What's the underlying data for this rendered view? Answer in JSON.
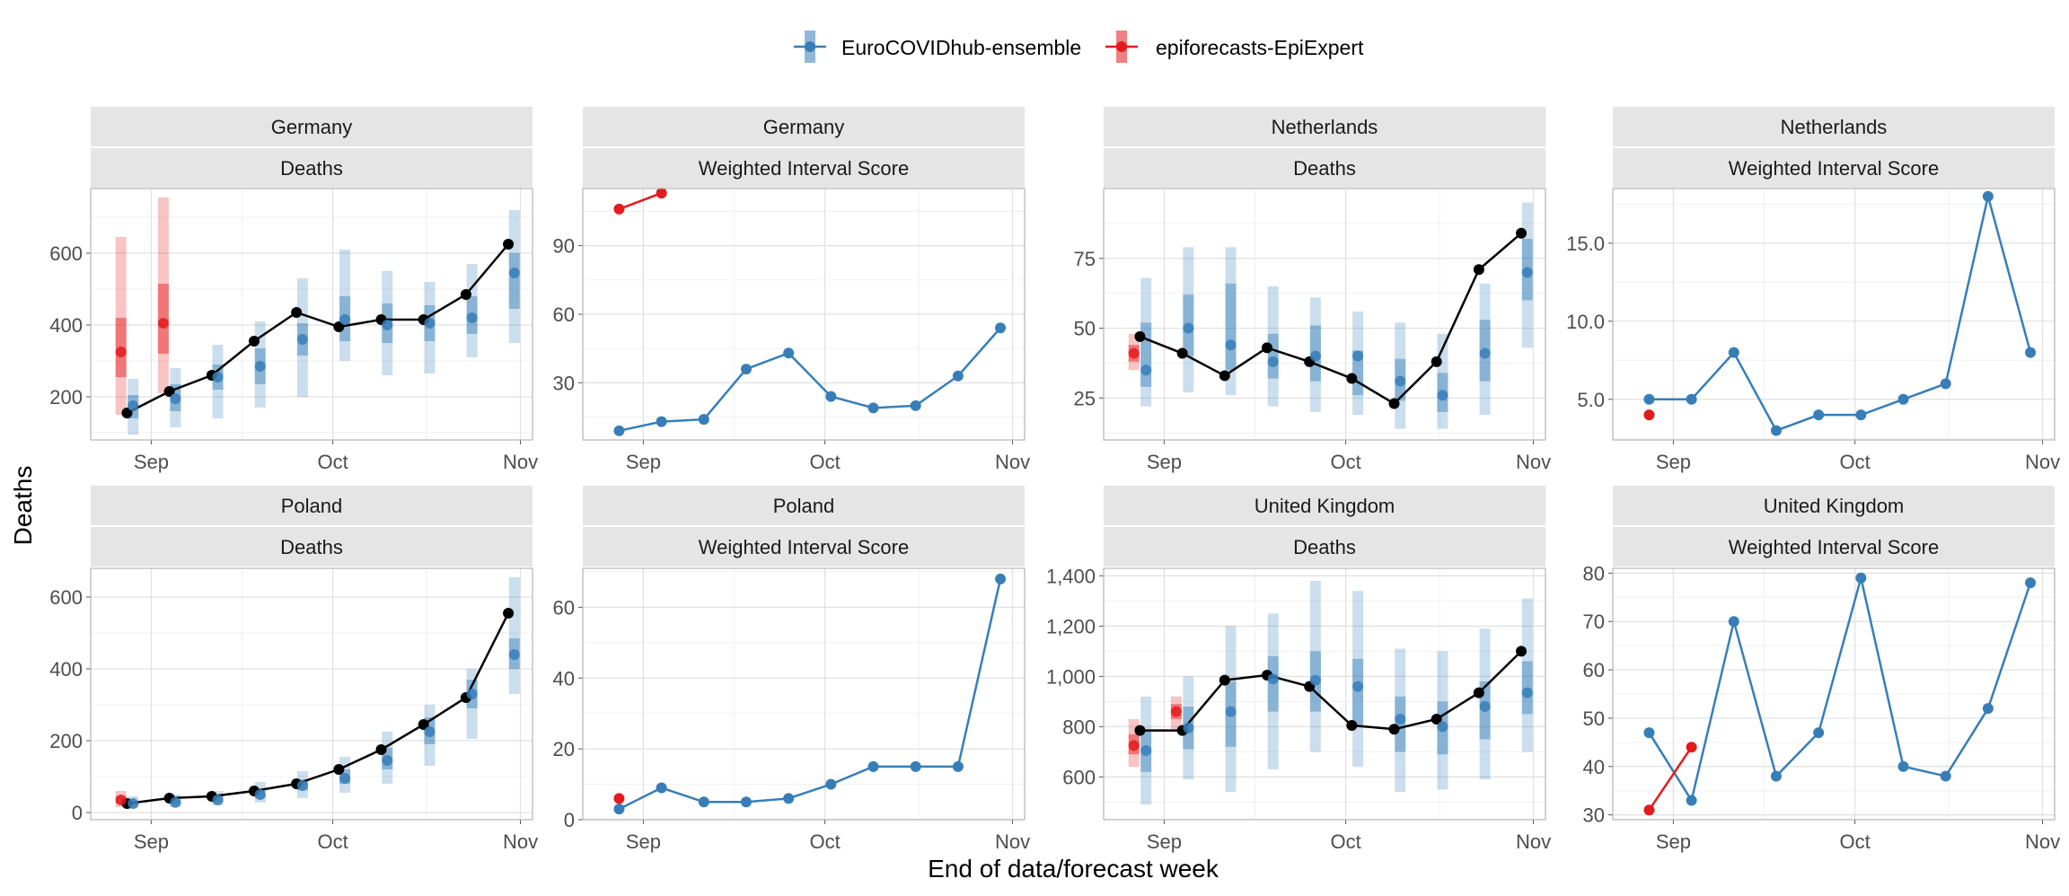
{
  "figure": {
    "xlabel": "End of data/forecast week",
    "ylabel": "Deaths"
  },
  "legend": {
    "position": "top",
    "entries": [
      {
        "name": "EuroCOVIDhub-ensemble",
        "color": "#377EB8"
      },
      {
        "name": "epiforecasts-EpiExpert",
        "color": "#E41A1C"
      }
    ]
  },
  "colors": {
    "observed": "#000000",
    "ensemble": "#377EB8",
    "epiexpert": "#E41A1C",
    "strip_bg": "#E5E5E5",
    "grid_major": "#E0E0E0",
    "grid_minor": "#F0F0F0"
  },
  "x_axis": {
    "ticks": [
      {
        "label": "Sep",
        "date": "2021-09-01"
      },
      {
        "label": "Oct",
        "date": "2021-10-01"
      },
      {
        "label": "Nov",
        "date": "2021-11-01"
      }
    ],
    "range": [
      "2021-08-22",
      "2021-11-03"
    ]
  },
  "chart_data": [
    {
      "type": "line",
      "location": "Germany",
      "panel_label": "Deaths",
      "ylim": [
        80,
        780
      ],
      "y_ticks": [
        200,
        400,
        600
      ],
      "observed": {
        "x": [
          "2021-08-28",
          "2021-09-04",
          "2021-09-11",
          "2021-09-18",
          "2021-09-25",
          "2021-10-02",
          "2021-10-09",
          "2021-10-16",
          "2021-10-23",
          "2021-10-30"
        ],
        "y": [
          155,
          215,
          260,
          355,
          435,
          395,
          415,
          415,
          485,
          625
        ]
      },
      "series": [
        {
          "name": "EuroCOVIDhub-ensemble",
          "x": [
            "2021-08-29",
            "2021-09-05",
            "2021-09-12",
            "2021-09-19",
            "2021-09-26",
            "2021-10-03",
            "2021-10-10",
            "2021-10-17",
            "2021-10-24",
            "2021-10-31"
          ],
          "median": [
            175,
            195,
            255,
            285,
            360,
            415,
            400,
            405,
            420,
            545
          ],
          "lo50": [
            140,
            160,
            220,
            235,
            315,
            355,
            350,
            355,
            375,
            445
          ],
          "hi50": [
            205,
            235,
            290,
            335,
            405,
            480,
            460,
            455,
            480,
            600
          ],
          "lo90": [
            95,
            115,
            140,
            170,
            200,
            300,
            260,
            265,
            310,
            350
          ],
          "hi90": [
            250,
            280,
            345,
            410,
            530,
            610,
            550,
            520,
            570,
            720
          ]
        },
        {
          "name": "epiforecasts-EpiExpert",
          "x": [
            "2021-08-27",
            "2021-09-03"
          ],
          "median": [
            325,
            405
          ],
          "lo50": [
            255,
            320
          ],
          "hi50": [
            420,
            515
          ],
          "lo90": [
            150,
            210
          ],
          "hi90": [
            645,
            755
          ]
        }
      ]
    },
    {
      "type": "line",
      "location": "Germany",
      "panel_label": "Weighted Interval Score",
      "ylim": [
        5,
        115
      ],
      "y_ticks": [
        30,
        60,
        90
      ],
      "series": [
        {
          "name": "EuroCOVIDhub-ensemble",
          "x": [
            "2021-08-28",
            "2021-09-04",
            "2021-09-11",
            "2021-09-18",
            "2021-09-25",
            "2021-10-02",
            "2021-10-09",
            "2021-10-16",
            "2021-10-23",
            "2021-10-30"
          ],
          "y": [
            9,
            13,
            14,
            36,
            43,
            24,
            19,
            20,
            33,
            54
          ]
        },
        {
          "name": "epiforecasts-EpiExpert",
          "x": [
            "2021-08-28",
            "2021-09-04"
          ],
          "y": [
            106,
            113
          ]
        }
      ]
    },
    {
      "type": "line",
      "location": "Netherlands",
      "panel_label": "Deaths",
      "ylim": [
        10,
        100
      ],
      "y_ticks": [
        25,
        50,
        75
      ],
      "observed": {
        "x": [
          "2021-08-28",
          "2021-09-04",
          "2021-09-11",
          "2021-09-18",
          "2021-09-25",
          "2021-10-02",
          "2021-10-09",
          "2021-10-16",
          "2021-10-23",
          "2021-10-30"
        ],
        "y": [
          47,
          41,
          33,
          43,
          38,
          32,
          23,
          38,
          71,
          84
        ]
      },
      "series": [
        {
          "name": "EuroCOVIDhub-ensemble",
          "x": [
            "2021-08-29",
            "2021-09-05",
            "2021-09-12",
            "2021-09-19",
            "2021-09-26",
            "2021-10-03",
            "2021-10-10",
            "2021-10-17",
            "2021-10-24",
            "2021-10-31"
          ],
          "median": [
            35,
            50,
            44,
            38,
            40,
            40,
            31,
            26,
            41,
            70
          ],
          "lo50": [
            29,
            40,
            35,
            32,
            31,
            26,
            24,
            20,
            31,
            60
          ],
          "hi50": [
            52,
            62,
            66,
            48,
            51,
            42,
            39,
            34,
            53,
            82
          ],
          "lo90": [
            22,
            27,
            26,
            22,
            20,
            19,
            14,
            14,
            19,
            43
          ],
          "hi90": [
            68,
            79,
            79,
            65,
            61,
            56,
            52,
            48,
            66,
            95
          ]
        },
        {
          "name": "epiforecasts-EpiExpert",
          "x": [
            "2021-08-27"
          ],
          "median": [
            41
          ],
          "lo50": [
            38
          ],
          "hi50": [
            44
          ],
          "lo90": [
            35
          ],
          "hi90": [
            48
          ]
        }
      ]
    },
    {
      "type": "line",
      "location": "Netherlands",
      "panel_label": "Weighted Interval Score",
      "ylim": [
        2.4,
        18.5
      ],
      "y_ticks": [
        5.0,
        10.0,
        15.0
      ],
      "y_tick_labels": [
        "5.0",
        "10.0",
        "15.0"
      ],
      "series": [
        {
          "name": "EuroCOVIDhub-ensemble",
          "x": [
            "2021-08-28",
            "2021-09-04",
            "2021-09-11",
            "2021-09-18",
            "2021-09-25",
            "2021-10-02",
            "2021-10-09",
            "2021-10-16",
            "2021-10-23",
            "2021-10-30"
          ],
          "y": [
            5,
            5,
            8,
            3,
            4,
            4,
            5,
            6,
            18,
            8
          ]
        },
        {
          "name": "epiforecasts-EpiExpert",
          "x": [
            "2021-08-28"
          ],
          "y": [
            4
          ]
        }
      ]
    },
    {
      "type": "line",
      "location": "Poland",
      "panel_label": "Deaths",
      "ylim": [
        -20,
        680
      ],
      "y_ticks": [
        0,
        200,
        400,
        600
      ],
      "observed": {
        "x": [
          "2021-08-28",
          "2021-09-04",
          "2021-09-11",
          "2021-09-18",
          "2021-09-25",
          "2021-10-02",
          "2021-10-09",
          "2021-10-16",
          "2021-10-23",
          "2021-10-30"
        ],
        "y": [
          25,
          40,
          45,
          60,
          80,
          120,
          175,
          245,
          320,
          555
        ]
      },
      "series": [
        {
          "name": "EuroCOVIDhub-ensemble",
          "x": [
            "2021-08-29",
            "2021-09-05",
            "2021-09-12",
            "2021-09-19",
            "2021-09-26",
            "2021-10-03",
            "2021-10-10",
            "2021-10-17",
            "2021-10-24",
            "2021-10-31"
          ],
          "median": [
            25,
            28,
            35,
            50,
            75,
            95,
            145,
            225,
            330,
            440
          ],
          "lo50": [
            20,
            22,
            28,
            40,
            62,
            80,
            120,
            190,
            290,
            400
          ],
          "hi50": [
            32,
            35,
            45,
            62,
            92,
            120,
            180,
            265,
            370,
            485
          ],
          "lo90": [
            12,
            15,
            20,
            28,
            40,
            55,
            80,
            130,
            205,
            330
          ],
          "hi90": [
            45,
            50,
            60,
            85,
            115,
            155,
            225,
            300,
            400,
            655
          ]
        },
        {
          "name": "epiforecasts-EpiExpert",
          "x": [
            "2021-08-27"
          ],
          "median": [
            35
          ],
          "lo50": [
            25
          ],
          "hi50": [
            45
          ],
          "lo90": [
            15
          ],
          "hi90": [
            60
          ]
        }
      ]
    },
    {
      "type": "line",
      "location": "Poland",
      "panel_label": "Weighted Interval Score",
      "ylim": [
        0,
        71
      ],
      "y_ticks": [
        0,
        20,
        40,
        60
      ],
      "series": [
        {
          "name": "EuroCOVIDhub-ensemble",
          "x": [
            "2021-08-28",
            "2021-09-04",
            "2021-09-11",
            "2021-09-18",
            "2021-09-25",
            "2021-10-02",
            "2021-10-09",
            "2021-10-16",
            "2021-10-23",
            "2021-10-30"
          ],
          "y": [
            3,
            9,
            5,
            5,
            6,
            10,
            15,
            15,
            15,
            68
          ]
        },
        {
          "name": "epiforecasts-EpiExpert",
          "x": [
            "2021-08-28"
          ],
          "y": [
            6
          ]
        }
      ]
    },
    {
      "type": "line",
      "location": "United Kingdom",
      "panel_label": "Deaths",
      "ylim": [
        430,
        1430
      ],
      "y_ticks": [
        600,
        800,
        1000,
        1200,
        1400
      ],
      "y_tick_labels": [
        "600",
        "800",
        "1,000",
        "1,200",
        "1,400"
      ],
      "observed": {
        "x": [
          "2021-08-28",
          "2021-09-04",
          "2021-09-11",
          "2021-09-18",
          "2021-09-25",
          "2021-10-02",
          "2021-10-09",
          "2021-10-16",
          "2021-10-23",
          "2021-10-30"
        ],
        "y": [
          785,
          785,
          985,
          1005,
          960,
          805,
          790,
          830,
          935,
          1100
        ]
      },
      "series": [
        {
          "name": "EuroCOVIDhub-ensemble",
          "x": [
            "2021-08-29",
            "2021-09-05",
            "2021-09-12",
            "2021-09-19",
            "2021-09-26",
            "2021-10-03",
            "2021-10-10",
            "2021-10-17",
            "2021-10-24",
            "2021-10-31"
          ],
          "median": [
            705,
            795,
            860,
            990,
            985,
            960,
            830,
            800,
            880,
            935
          ],
          "lo50": [
            620,
            710,
            720,
            860,
            860,
            800,
            700,
            690,
            750,
            850
          ],
          "hi50": [
            790,
            880,
            980,
            1080,
            1100,
            1070,
            920,
            900,
            980,
            1060
          ],
          "lo90": [
            490,
            590,
            540,
            630,
            700,
            640,
            540,
            550,
            590,
            700
          ],
          "hi90": [
            920,
            1000,
            1200,
            1250,
            1380,
            1340,
            1110,
            1100,
            1190,
            1310
          ]
        },
        {
          "name": "epiforecasts-EpiExpert",
          "x": [
            "2021-08-27",
            "2021-09-03"
          ],
          "median": [
            725,
            860
          ],
          "lo50": [
            690,
            830
          ],
          "hi50": [
            770,
            890
          ],
          "lo90": [
            640,
            790
          ],
          "hi90": [
            830,
            920
          ]
        }
      ]
    },
    {
      "type": "line",
      "location": "United Kingdom",
      "panel_label": "Weighted Interval Score",
      "ylim": [
        29,
        81
      ],
      "y_ticks": [
        30,
        40,
        50,
        60,
        70,
        80
      ],
      "series": [
        {
          "name": "EuroCOVIDhub-ensemble",
          "x": [
            "2021-08-28",
            "2021-09-04",
            "2021-09-11",
            "2021-09-18",
            "2021-09-25",
            "2021-10-02",
            "2021-10-09",
            "2021-10-16",
            "2021-10-23",
            "2021-10-30"
          ],
          "y": [
            47,
            33,
            70,
            38,
            47,
            79,
            40,
            38,
            52,
            78
          ]
        },
        {
          "name": "epiforecasts-EpiExpert",
          "x": [
            "2021-08-28",
            "2021-09-04"
          ],
          "y": [
            31,
            44
          ]
        }
      ]
    }
  ]
}
